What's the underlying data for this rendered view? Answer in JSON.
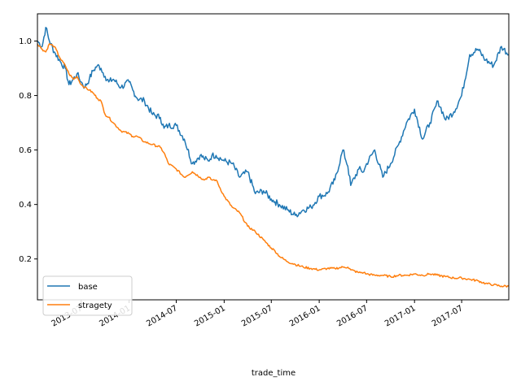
{
  "chart_data": {
    "type": "line",
    "title": "",
    "xlabel": "trade_time",
    "ylabel": "",
    "x_ticks": [
      "2013-07",
      "2014-01",
      "2014-07",
      "2015-01",
      "2015-07",
      "2016-01",
      "2016-07",
      "2017-01",
      "2017-07"
    ],
    "y_ticks": [
      0.2,
      0.4,
      0.6,
      0.8,
      1.0
    ],
    "xlim": [
      "2013-01-14",
      "2017-12-29"
    ],
    "ylim": [
      0.05,
      1.1
    ],
    "legend_position": "lower-left",
    "x": [
      "2013-01-14",
      "2013-02-01",
      "2013-02-15",
      "2013-03-01",
      "2013-03-20",
      "2013-04-15",
      "2013-05-01",
      "2013-05-15",
      "2013-06-01",
      "2013-06-15",
      "2013-07-01",
      "2013-07-15",
      "2013-08-01",
      "2013-08-15",
      "2013-09-01",
      "2013-09-15",
      "2013-10-01",
      "2013-10-15",
      "2013-11-01",
      "2013-12-01",
      "2014-01-01",
      "2014-01-15",
      "2014-02-01",
      "2014-03-01",
      "2014-04-01",
      "2014-05-01",
      "2014-05-15",
      "2014-06-01",
      "2014-07-01",
      "2014-08-01",
      "2014-09-01",
      "2014-10-01",
      "2014-10-15",
      "2014-11-01",
      "2014-11-15",
      "2014-12-01",
      "2015-01-01",
      "2015-02-01",
      "2015-03-01",
      "2015-04-01",
      "2015-05-01",
      "2015-06-01",
      "2015-07-01",
      "2015-07-15",
      "2015-08-01",
      "2015-09-01",
      "2015-10-01",
      "2015-11-01",
      "2015-12-01",
      "2016-01-01",
      "2016-02-01",
      "2016-03-01",
      "2016-04-01",
      "2016-04-20",
      "2016-05-01",
      "2016-06-01",
      "2016-06-20",
      "2016-07-01",
      "2016-08-01",
      "2016-09-01",
      "2016-10-01",
      "2016-11-01",
      "2016-12-01",
      "2017-01-01",
      "2017-02-01",
      "2017-03-01",
      "2017-04-01",
      "2017-05-01",
      "2017-06-01",
      "2017-07-01",
      "2017-08-01",
      "2017-09-01",
      "2017-10-01",
      "2017-11-01",
      "2017-12-01",
      "2017-12-29"
    ],
    "series": [
      {
        "name": "base",
        "color": "#1f77b4",
        "values": [
          1.0,
          0.98,
          1.05,
          1.0,
          0.96,
          0.92,
          0.9,
          0.84,
          0.86,
          0.88,
          0.85,
          0.83,
          0.86,
          0.89,
          0.91,
          0.9,
          0.87,
          0.85,
          0.86,
          0.83,
          0.85,
          0.82,
          0.79,
          0.78,
          0.73,
          0.72,
          0.68,
          0.69,
          0.69,
          0.64,
          0.55,
          0.58,
          0.57,
          0.56,
          0.58,
          0.58,
          0.56,
          0.55,
          0.5,
          0.52,
          0.44,
          0.45,
          0.42,
          0.41,
          0.4,
          0.38,
          0.36,
          0.38,
          0.39,
          0.43,
          0.44,
          0.49,
          0.6,
          0.54,
          0.47,
          0.53,
          0.52,
          0.55,
          0.6,
          0.5,
          0.55,
          0.62,
          0.7,
          0.75,
          0.64,
          0.7,
          0.78,
          0.71,
          0.74,
          0.8,
          0.95,
          0.97,
          0.93,
          0.91,
          0.98,
          0.95
        ]
      },
      {
        "name": "stragety",
        "color": "#ff7f0e",
        "values": [
          0.99,
          0.97,
          0.96,
          0.99,
          0.98,
          0.93,
          0.91,
          0.88,
          0.86,
          0.87,
          0.84,
          0.83,
          0.82,
          0.81,
          0.79,
          0.78,
          0.73,
          0.72,
          0.7,
          0.67,
          0.66,
          0.65,
          0.65,
          0.63,
          0.62,
          0.61,
          0.59,
          0.55,
          0.53,
          0.5,
          0.52,
          0.5,
          0.49,
          0.5,
          0.49,
          0.49,
          0.43,
          0.39,
          0.37,
          0.32,
          0.3,
          0.27,
          0.24,
          0.23,
          0.21,
          0.19,
          0.18,
          0.17,
          0.165,
          0.16,
          0.165,
          0.165,
          0.17,
          0.17,
          0.16,
          0.15,
          0.15,
          0.145,
          0.14,
          0.14,
          0.135,
          0.14,
          0.14,
          0.145,
          0.14,
          0.145,
          0.14,
          0.135,
          0.13,
          0.13,
          0.125,
          0.12,
          0.11,
          0.105,
          0.1,
          0.1
        ]
      }
    ]
  }
}
